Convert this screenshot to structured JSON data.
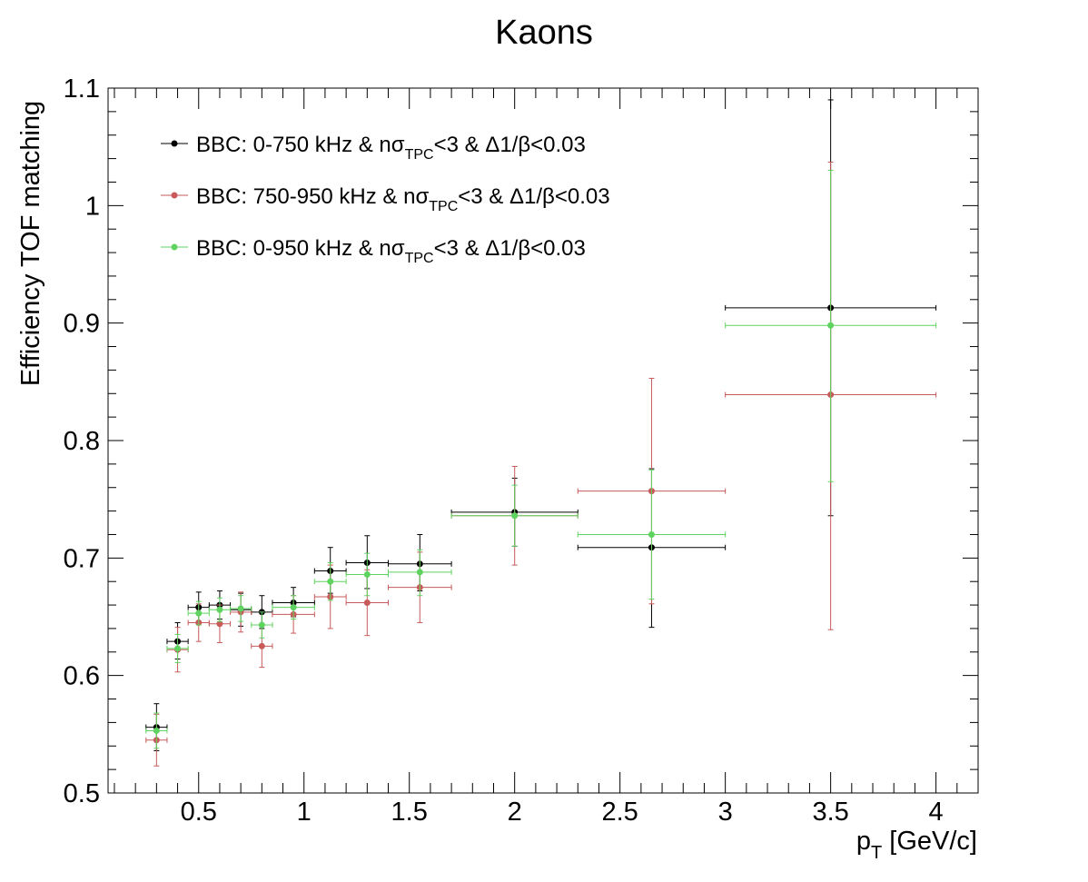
{
  "chart_data": {
    "type": "scatter",
    "title": "Kaons",
    "xlabel": {
      "main": "p",
      "sub": "T",
      "rest": " [GeV/c]"
    },
    "ylabel": "Efficiency TOF matching",
    "xlim": [
      0.07,
      4.2
    ],
    "ylim": [
      0.5,
      1.1
    ],
    "x_ticks": [
      0.5,
      1,
      1.5,
      2,
      2.5,
      3,
      3.5,
      4
    ],
    "x_tick_labels": [
      "0.5",
      "1",
      "1.5",
      "2",
      "2.5",
      "3",
      "3.5",
      "4"
    ],
    "y_ticks": [
      0.5,
      0.6,
      0.7,
      0.8,
      0.9,
      1.0,
      1.1
    ],
    "y_tick_labels": [
      "0.5",
      "0.6",
      "0.7",
      "0.8",
      "0.9",
      "1",
      "1.1"
    ],
    "grid": false,
    "legend_position": "top-left",
    "series": [
      {
        "name": "BBC: 0-750 kHz & nσTPC<3 & Δ1/β<0.03",
        "legend": {
          "pre": "BBC: 0-750 kHz & nσ",
          "sub": "TPC",
          "post": "<3 & Δ1/β<0.03"
        },
        "color": "#000000",
        "points": [
          {
            "x": 0.3,
            "xlo": 0.25,
            "xhi": 0.35,
            "y": 0.556,
            "ylo": 0.536,
            "yhi": 0.576
          },
          {
            "x": 0.4,
            "xlo": 0.35,
            "xhi": 0.45,
            "y": 0.629,
            "ylo": 0.614,
            "yhi": 0.645
          },
          {
            "x": 0.5,
            "xlo": 0.45,
            "xhi": 0.55,
            "y": 0.658,
            "ylo": 0.646,
            "yhi": 0.671
          },
          {
            "x": 0.6,
            "xlo": 0.55,
            "xhi": 0.65,
            "y": 0.66,
            "ylo": 0.648,
            "yhi": 0.672
          },
          {
            "x": 0.7,
            "xlo": 0.65,
            "xhi": 0.75,
            "y": 0.656,
            "ylo": 0.642,
            "yhi": 0.67
          },
          {
            "x": 0.8,
            "xlo": 0.75,
            "xhi": 0.85,
            "y": 0.654,
            "ylo": 0.64,
            "yhi": 0.668
          },
          {
            "x": 0.95,
            "xlo": 0.85,
            "xhi": 1.05,
            "y": 0.662,
            "ylo": 0.65,
            "yhi": 0.675
          },
          {
            "x": 1.125,
            "xlo": 1.05,
            "xhi": 1.2,
            "y": 0.689,
            "ylo": 0.67,
            "yhi": 0.709
          },
          {
            "x": 1.3,
            "xlo": 1.2,
            "xhi": 1.4,
            "y": 0.696,
            "ylo": 0.674,
            "yhi": 0.719
          },
          {
            "x": 1.55,
            "xlo": 1.4,
            "xhi": 1.7,
            "y": 0.695,
            "ylo": 0.672,
            "yhi": 0.72
          },
          {
            "x": 2.0,
            "xlo": 1.7,
            "xhi": 2.3,
            "y": 0.739,
            "ylo": 0.71,
            "yhi": 0.768
          },
          {
            "x": 2.65,
            "xlo": 2.3,
            "xhi": 3.0,
            "y": 0.709,
            "ylo": 0.641,
            "yhi": 0.776
          },
          {
            "x": 3.5,
            "xlo": 3.0,
            "xhi": 4.0,
            "y": 0.913,
            "ylo": 0.736,
            "yhi": 1.09
          }
        ]
      },
      {
        "name": "BBC: 750-950 kHz & nσTPC<3 & Δ1/β<0.03",
        "legend": {
          "pre": "BBC: 750-950 kHz & nσ",
          "sub": "TPC",
          "post": "<3 & Δ1/β<0.03"
        },
        "color": "#c85a5a",
        "points": [
          {
            "x": 0.3,
            "xlo": 0.25,
            "xhi": 0.35,
            "y": 0.545,
            "ylo": 0.523,
            "yhi": 0.567
          },
          {
            "x": 0.4,
            "xlo": 0.35,
            "xhi": 0.45,
            "y": 0.622,
            "ylo": 0.603,
            "yhi": 0.641
          },
          {
            "x": 0.5,
            "xlo": 0.45,
            "xhi": 0.55,
            "y": 0.645,
            "ylo": 0.629,
            "yhi": 0.661
          },
          {
            "x": 0.6,
            "xlo": 0.55,
            "xhi": 0.65,
            "y": 0.644,
            "ylo": 0.628,
            "yhi": 0.66
          },
          {
            "x": 0.7,
            "xlo": 0.65,
            "xhi": 0.75,
            "y": 0.654,
            "ylo": 0.637,
            "yhi": 0.671
          },
          {
            "x": 0.8,
            "xlo": 0.75,
            "xhi": 0.85,
            "y": 0.625,
            "ylo": 0.607,
            "yhi": 0.643
          },
          {
            "x": 0.95,
            "xlo": 0.85,
            "xhi": 1.05,
            "y": 0.652,
            "ylo": 0.636,
            "yhi": 0.668
          },
          {
            "x": 1.125,
            "xlo": 1.05,
            "xhi": 1.2,
            "y": 0.667,
            "ylo": 0.64,
            "yhi": 0.694
          },
          {
            "x": 1.3,
            "xlo": 1.2,
            "xhi": 1.4,
            "y": 0.662,
            "ylo": 0.634,
            "yhi": 0.69
          },
          {
            "x": 1.55,
            "xlo": 1.4,
            "xhi": 1.7,
            "y": 0.675,
            "ylo": 0.645,
            "yhi": 0.705
          },
          {
            "x": 2.0,
            "xlo": 1.7,
            "xhi": 2.3,
            "y": 0.736,
            "ylo": 0.694,
            "yhi": 0.778
          },
          {
            "x": 2.65,
            "xlo": 2.3,
            "xhi": 3.0,
            "y": 0.757,
            "ylo": 0.661,
            "yhi": 0.853
          },
          {
            "x": 3.5,
            "xlo": 3.0,
            "xhi": 4.0,
            "y": 0.839,
            "ylo": 0.639,
            "yhi": 1.037
          }
        ]
      },
      {
        "name": "BBC: 0-950 kHz & nσTPC<3 & Δ1/β<0.03",
        "legend": {
          "pre": "BBC: 0-950 kHz & nσ",
          "sub": "TPC",
          "post": "<3 & Δ1/β<0.03"
        },
        "color": "#5fd35f",
        "points": [
          {
            "x": 0.3,
            "xlo": 0.25,
            "xhi": 0.35,
            "y": 0.553,
            "ylo": 0.538,
            "yhi": 0.568
          },
          {
            "x": 0.4,
            "xlo": 0.35,
            "xhi": 0.45,
            "y": 0.623,
            "ylo": 0.611,
            "yhi": 0.635
          },
          {
            "x": 0.5,
            "xlo": 0.45,
            "xhi": 0.55,
            "y": 0.653,
            "ylo": 0.643,
            "yhi": 0.663
          },
          {
            "x": 0.6,
            "xlo": 0.55,
            "xhi": 0.65,
            "y": 0.656,
            "ylo": 0.646,
            "yhi": 0.666
          },
          {
            "x": 0.7,
            "xlo": 0.65,
            "xhi": 0.75,
            "y": 0.657,
            "ylo": 0.646,
            "yhi": 0.668
          },
          {
            "x": 0.8,
            "xlo": 0.75,
            "xhi": 0.85,
            "y": 0.643,
            "ylo": 0.632,
            "yhi": 0.654
          },
          {
            "x": 0.95,
            "xlo": 0.85,
            "xhi": 1.05,
            "y": 0.658,
            "ylo": 0.648,
            "yhi": 0.668
          },
          {
            "x": 1.125,
            "xlo": 1.05,
            "xhi": 1.2,
            "y": 0.68,
            "ylo": 0.664,
            "yhi": 0.696
          },
          {
            "x": 1.3,
            "xlo": 1.2,
            "xhi": 1.4,
            "y": 0.686,
            "ylo": 0.668,
            "yhi": 0.704
          },
          {
            "x": 1.55,
            "xlo": 1.4,
            "xhi": 1.7,
            "y": 0.688,
            "ylo": 0.668,
            "yhi": 0.707
          },
          {
            "x": 2.0,
            "xlo": 1.7,
            "xhi": 2.3,
            "y": 0.736,
            "ylo": 0.71,
            "yhi": 0.762
          },
          {
            "x": 2.65,
            "xlo": 2.3,
            "xhi": 3.0,
            "y": 0.72,
            "ylo": 0.665,
            "yhi": 0.775
          },
          {
            "x": 3.5,
            "xlo": 3.0,
            "xhi": 4.0,
            "y": 0.898,
            "ylo": 0.765,
            "yhi": 1.03
          }
        ]
      }
    ]
  }
}
